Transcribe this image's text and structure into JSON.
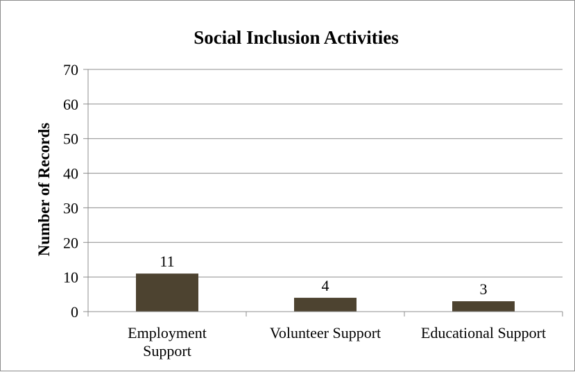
{
  "chart_data": {
    "type": "bar",
    "title": "Social Inclusion Activities",
    "xlabel": "",
    "ylabel": "Number of Records",
    "categories": [
      "Employment Support",
      "Volunteer Support",
      "Educational Support"
    ],
    "category_lines": [
      [
        "Employment",
        "Support"
      ],
      [
        "Volunteer Support"
      ],
      [
        "Educational Support"
      ]
    ],
    "values": [
      11,
      4,
      3
    ],
    "data_labels": [
      "11",
      "4",
      "3"
    ],
    "ylim": [
      0,
      70
    ],
    "yticks": [
      0,
      10,
      20,
      30,
      40,
      50,
      60,
      70
    ],
    "grid": true,
    "legend": "none",
    "bar_color": "#4d4330"
  }
}
